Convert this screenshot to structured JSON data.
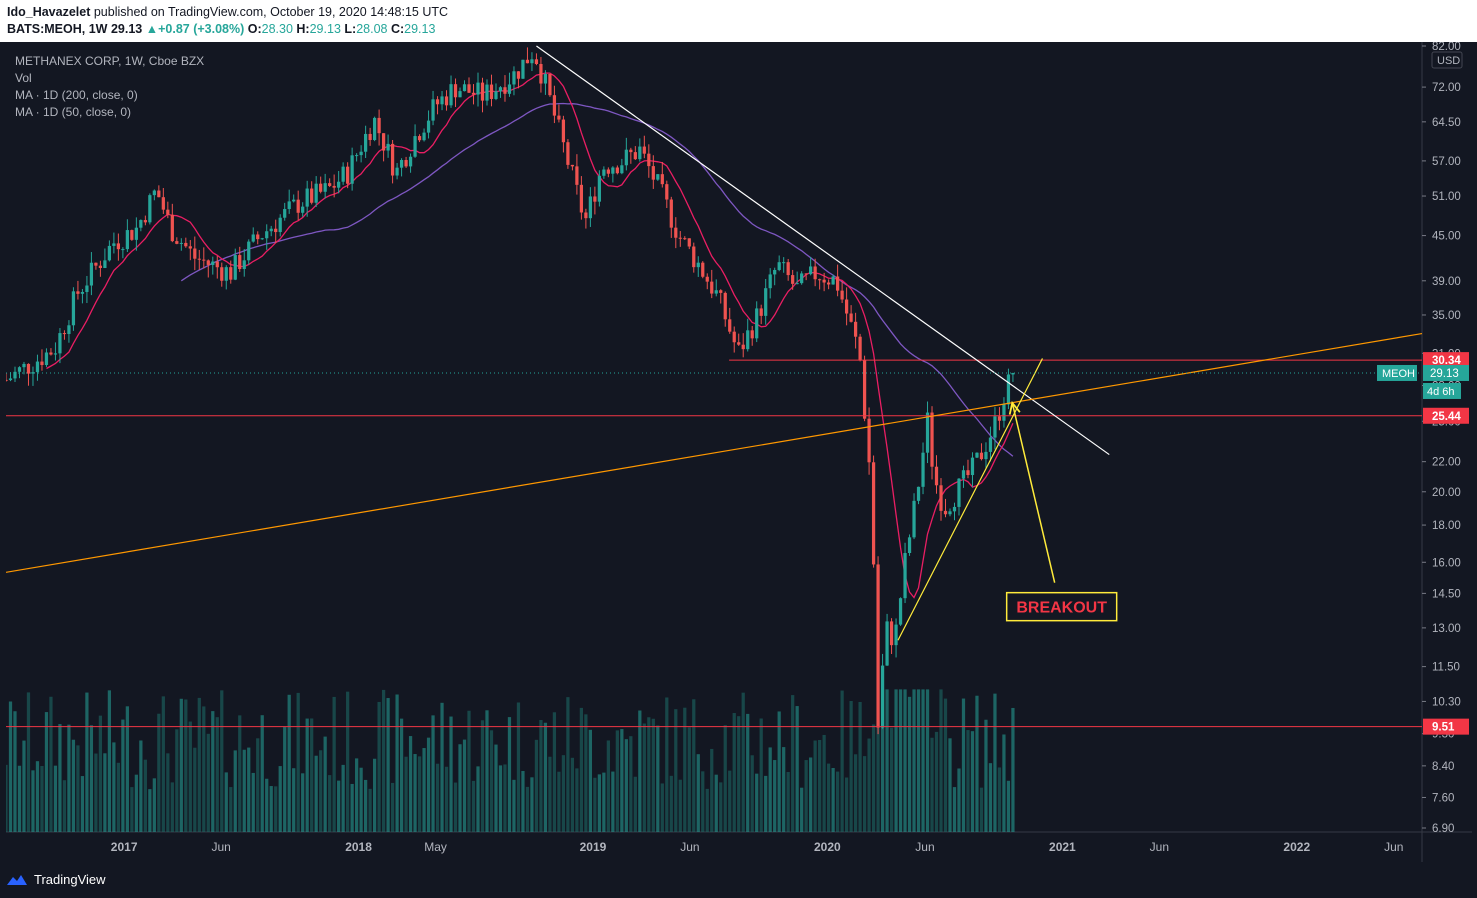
{
  "header": {
    "author": "Ido_Havazelet",
    "published_text": "published on TradingView.com, October 19, 2020 14:48:15 UTC",
    "symbol": "BATS:MEOH, 1W",
    "last": "29.13",
    "change": "+0.87 (+3.08%)",
    "o_label": "O:",
    "o": "28.30",
    "h_label": "H:",
    "h": "29.13",
    "l_label": "L:",
    "l": "28.08",
    "c_label": "C:",
    "c": "29.13"
  },
  "legend": {
    "title": "METHANEX CORP, 1W, Cboe BZX",
    "vol": "Vol",
    "ma200": "MA · 1D (200, close, 0)",
    "ma50": "MA · 1D (50, close, 0)"
  },
  "footer": {
    "brand": "TradingView"
  },
  "colors": {
    "background": "#131722",
    "up": "#26a69a",
    "down": "#ef5350",
    "ma50": "#e91e63",
    "ma200": "#7e57c2",
    "hline": "#f23645",
    "trend_white": "#ffffff",
    "trend_orange": "#ff9800",
    "trend_yellow": "#ffeb3b"
  },
  "chart_data": {
    "type": "candlestick",
    "price_axis": {
      "scale": "log",
      "currency": "USD",
      "ticks": [
        6.9,
        7.6,
        8.4,
        9.3,
        10.3,
        11.5,
        13.0,
        14.5,
        16.0,
        18.0,
        20.0,
        22.0,
        25.0,
        28.0,
        31.0,
        35.0,
        39.0,
        45.0,
        51.0,
        57.0,
        64.5,
        72.0,
        82.0
      ],
      "tick_labels": [
        "6.90",
        "7.60",
        "8.40",
        "9.30",
        "10.30",
        "11.50",
        "13.00",
        "14.50",
        "16.00",
        "18.00",
        "20.00",
        "22.00",
        "25.00",
        "28.00",
        "31.00",
        "35.00",
        "39.00",
        "45.00",
        "51.00",
        "57.00",
        "64.50",
        "72.00",
        "82.00"
      ],
      "range": [
        6.9,
        82
      ]
    },
    "time_axis": {
      "ticks": [
        {
          "date": "2017-01-01",
          "label": "2017",
          "major": true
        },
        {
          "date": "2017-06-01",
          "label": "Jun",
          "major": false
        },
        {
          "date": "2018-01-01",
          "label": "2018",
          "major": true
        },
        {
          "date": "2018-05-01",
          "label": "May",
          "major": false
        },
        {
          "date": "2019-01-01",
          "label": "2019",
          "major": true
        },
        {
          "date": "2019-06-01",
          "label": "Jun",
          "major": false
        },
        {
          "date": "2020-01-01",
          "label": "2020",
          "major": true
        },
        {
          "date": "2020-06-01",
          "label": "Jun",
          "major": false
        },
        {
          "date": "2021-01-01",
          "label": "2021",
          "major": true
        },
        {
          "date": "2021-06-01",
          "label": "Jun",
          "major": false
        },
        {
          "date": "2022-01-01",
          "label": "2022",
          "major": true
        },
        {
          "date": "2022-06-01",
          "label": "Jun",
          "major": false
        }
      ],
      "range": [
        "2016-07-01",
        "2022-07-15"
      ]
    },
    "price_path": [
      [
        "2016-07-01",
        28.5
      ],
      [
        "2016-09-15",
        31.5
      ],
      [
        "2016-10-20",
        37.5
      ],
      [
        "2016-12-15",
        44
      ],
      [
        "2017-01-20",
        46
      ],
      [
        "2017-02-20",
        52
      ],
      [
        "2017-03-15",
        46
      ],
      [
        "2017-04-20",
        42
      ],
      [
        "2017-06-15",
        40
      ],
      [
        "2017-08-01",
        45
      ],
      [
        "2017-10-01",
        50
      ],
      [
        "2017-11-15",
        52
      ],
      [
        "2017-12-15",
        55
      ],
      [
        "2018-01-25",
        65
      ],
      [
        "2018-03-01",
        55
      ],
      [
        "2018-04-01",
        62
      ],
      [
        "2018-05-01",
        68
      ],
      [
        "2018-06-01",
        72
      ],
      [
        "2018-07-15",
        70
      ],
      [
        "2018-09-01",
        75
      ],
      [
        "2018-10-01",
        81
      ],
      [
        "2018-10-20",
        72
      ],
      [
        "2018-11-20",
        58
      ],
      [
        "2018-12-20",
        47
      ],
      [
        "2019-01-15",
        56
      ],
      [
        "2019-02-15",
        57
      ],
      [
        "2019-03-15",
        59
      ],
      [
        "2019-04-15",
        52
      ],
      [
        "2019-05-15",
        45
      ],
      [
        "2019-06-15",
        41
      ],
      [
        "2019-07-15",
        37
      ],
      [
        "2019-08-15",
        31
      ],
      [
        "2019-09-15",
        35
      ],
      [
        "2019-10-15",
        41
      ],
      [
        "2019-11-15",
        38
      ],
      [
        "2019-12-15",
        40
      ],
      [
        "2020-01-15",
        39
      ],
      [
        "2020-02-01",
        35
      ],
      [
        "2020-02-20",
        31
      ],
      [
        "2020-03-10",
        20
      ],
      [
        "2020-03-20",
        9.5
      ],
      [
        "2020-04-01",
        13
      ],
      [
        "2020-04-15",
        12.5
      ],
      [
        "2020-05-01",
        16
      ],
      [
        "2020-05-20",
        20
      ],
      [
        "2020-06-05",
        25
      ],
      [
        "2020-06-15",
        21
      ],
      [
        "2020-07-01",
        19
      ],
      [
        "2020-07-20",
        20
      ],
      [
        "2020-08-15",
        21.5
      ],
      [
        "2020-09-01",
        23
      ],
      [
        "2020-09-20",
        25
      ],
      [
        "2020-10-01",
        27
      ],
      [
        "2020-10-16",
        29.13
      ]
    ],
    "volume_note": "weekly volume histogram at bottom",
    "horizontal_levels": [
      {
        "price": 30.34,
        "label": "30.34",
        "start": "2019-08-01"
      },
      {
        "price": 25.44,
        "label": "25.44",
        "start": "2016-07-01"
      },
      {
        "price": 9.51,
        "label": "9.51",
        "start": "2016-07-01"
      }
    ],
    "trendlines": [
      {
        "color": "white",
        "from": [
          "2018-10-05",
          82
        ],
        "to": [
          "2021-03-15",
          22.5
        ]
      },
      {
        "color": "orange",
        "from": [
          "2016-07-01",
          15.5
        ],
        "to": [
          "2022-07-15",
          33
        ]
      },
      {
        "color": "yellow",
        "from": [
          "2020-04-20",
          12.5
        ],
        "to": [
          "2020-12-01",
          30.5
        ]
      }
    ],
    "last_price": {
      "symbol": "MEOH",
      "value": "29.13",
      "countdown": "4d 6h"
    },
    "annotation": {
      "text": "BREAKOUT",
      "arrow_from": [
        "2020-12-20",
        15
      ],
      "arrow_to": [
        "2020-10-15",
        26.5
      ]
    }
  }
}
